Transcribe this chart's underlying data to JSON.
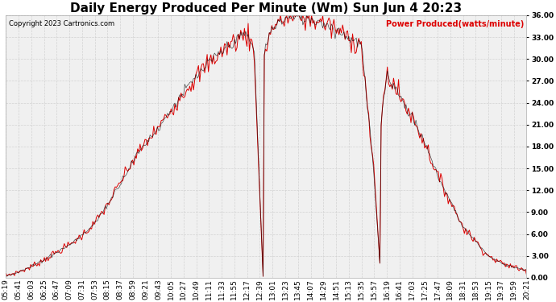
{
  "title": "Daily Energy Produced Per Minute (Wm) Sun Jun 4 20:23",
  "copyright_text": "Copyright 2023 Cartronics.com",
  "legend_label": "Power Produced(watts/minute)",
  "ymin": 0,
  "ymax": 36,
  "yticks": [
    0,
    3,
    6,
    9,
    12,
    15,
    18,
    21,
    24,
    27,
    30,
    33,
    36
  ],
  "bg_color": "#ffffff",
  "plot_bg_color": "#f0f0f0",
  "grid_color": "#cccccc",
  "line_color_red": "#dd0000",
  "line_color_black": "#000000",
  "title_color": "#000000",
  "copyright_color": "#000000",
  "legend_color": "#dd0000",
  "tick_label_fontsize": 6.5,
  "title_fontsize": 11,
  "x_labels": [
    "05:19",
    "05:41",
    "06:03",
    "06:25",
    "06:47",
    "07:09",
    "07:31",
    "07:53",
    "08:15",
    "08:37",
    "08:59",
    "09:21",
    "09:43",
    "10:05",
    "10:27",
    "10:49",
    "11:11",
    "11:33",
    "11:55",
    "12:17",
    "12:39",
    "13:01",
    "13:23",
    "13:45",
    "14:07",
    "14:29",
    "14:51",
    "15:13",
    "15:35",
    "15:57",
    "16:19",
    "16:41",
    "17:03",
    "17:25",
    "17:47",
    "18:09",
    "18:31",
    "18:53",
    "19:15",
    "19:37",
    "19:59",
    "20:21"
  ]
}
